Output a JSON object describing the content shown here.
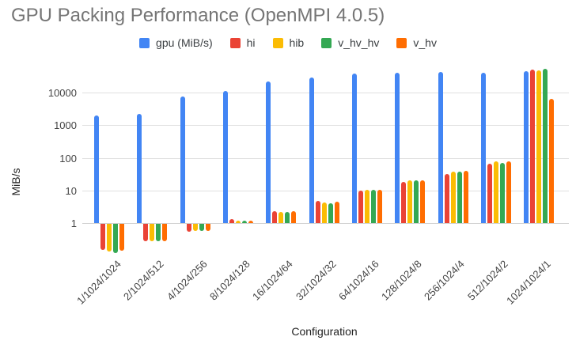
{
  "chart_data": {
    "type": "bar",
    "title": "GPU Packing Performance (OpenMPI 4.0.5)",
    "xlabel": "Configuration",
    "ylabel": "MiB/s",
    "y_scale": "log",
    "y_ticks": [
      1,
      10,
      100,
      1000,
      10000
    ],
    "ylim": [
      0.1,
      60000
    ],
    "grid": true,
    "legend_position": "top",
    "categories": [
      "1/1024/1024",
      "2/1024/512",
      "4/1024/256",
      "8/1024/128",
      "16/1024/64",
      "32/1024/32",
      "64/1024/16",
      "128/1024/8",
      "256/1024/4",
      "512/1024/2",
      "1024/1024/1"
    ],
    "series": [
      {
        "name": "gpu (MiB/s)",
        "color": "#4285F4",
        "values": [
          2000,
          2250,
          7800,
          11500,
          22000,
          30000,
          39000,
          40000,
          44000,
          40000,
          46000
        ]
      },
      {
        "name": "hi",
        "color": "#EA4335",
        "values": [
          0.16,
          0.3,
          0.57,
          1.3,
          2.35,
          4.7,
          10,
          18,
          32,
          68,
          51000
        ]
      },
      {
        "name": "hib",
        "color": "#FBBC04",
        "values": [
          0.14,
          0.3,
          0.6,
          1.2,
          2.25,
          4.3,
          10.5,
          20,
          38,
          80,
          48000
        ]
      },
      {
        "name": "v_hv_hv",
        "color": "#34A853",
        "values": [
          0.13,
          0.3,
          0.6,
          1.2,
          2.25,
          4.1,
          10.5,
          20,
          38,
          72,
          53000
        ]
      },
      {
        "name": "v_hv",
        "color": "#FF6D01",
        "values": [
          0.15,
          0.3,
          0.6,
          1.2,
          2.3,
          4.5,
          10.5,
          20,
          39,
          78,
          6500
        ]
      }
    ],
    "colors": {
      "title": "#757575",
      "axis_labels": "#444444",
      "axis_titles": "#222222",
      "gridline": "#e0e0e0",
      "baseline": "#d0d0d0",
      "background": "#ffffff"
    }
  }
}
